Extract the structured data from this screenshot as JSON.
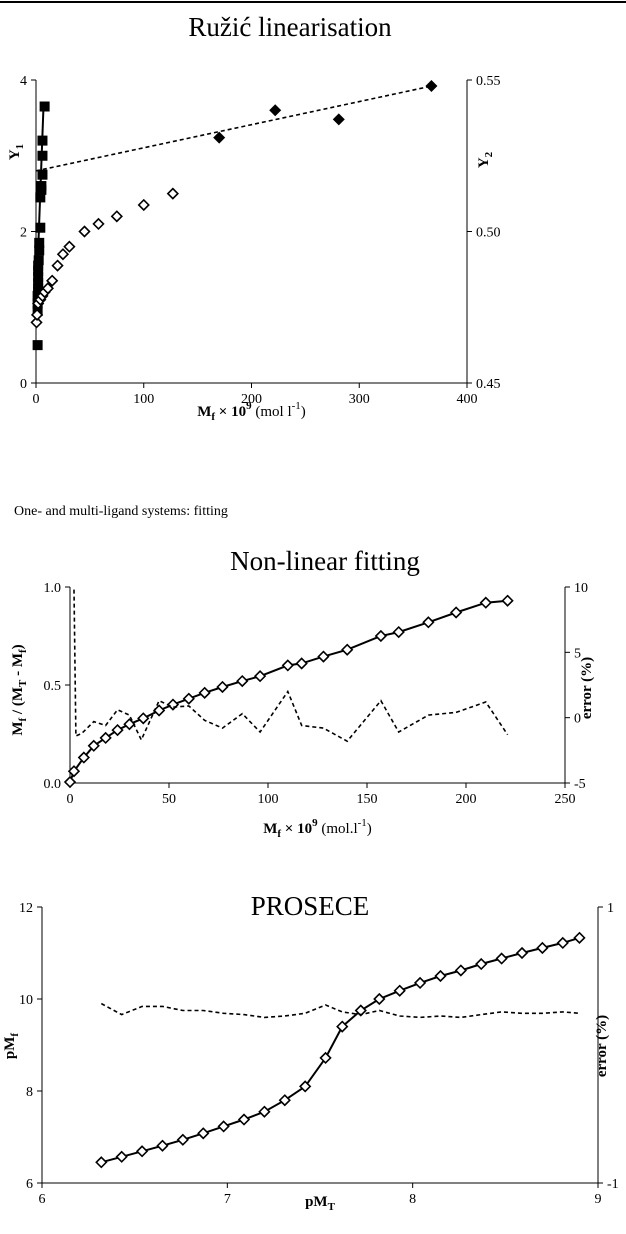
{
  "caption": "One- and multi-ligand systems: fitting",
  "chart_data": [
    {
      "type": "scatter",
      "title": "Ružić linearisation",
      "xlabel": {
        "main": "M",
        "sub": "f",
        "times": " × 10",
        "sup": "9",
        "unit": " (mol l",
        "unit_sup": "-1",
        "unit_end": ")"
      },
      "ylabel_left": {
        "main": "Y",
        "sub": "1"
      },
      "ylabel_right": {
        "main": "Y",
        "sub": "2"
      },
      "xlim": [
        0,
        400
      ],
      "ylim_left": [
        0,
        4
      ],
      "ylim_right": [
        0.45,
        0.55
      ],
      "xticks": [
        0,
        100,
        200,
        300,
        400
      ],
      "yticks_left": [
        0,
        2,
        4
      ],
      "yticks_right": [
        0.45,
        0.5,
        0.55
      ],
      "grid": false,
      "series": [
        {
          "axis": "left",
          "marker": "square-filled",
          "line": "none",
          "points": [
            [
              1.5,
              0.5
            ],
            [
              1.5,
              0.95
            ],
            [
              1.5,
              1.05
            ],
            [
              1.5,
              1.15
            ],
            [
              2,
              1.2
            ],
            [
              2,
              1.25
            ],
            [
              2,
              1.32
            ],
            [
              2,
              1.4
            ],
            [
              2,
              1.48
            ],
            [
              2,
              1.55
            ],
            [
              2.5,
              1.62
            ],
            [
              3,
              1.75
            ],
            [
              3,
              1.85
            ],
            [
              4,
              2.05
            ],
            [
              4,
              2.45
            ],
            [
              5,
              2.55
            ],
            [
              5,
              2.6
            ],
            [
              6,
              2.75
            ],
            [
              6,
              3.0
            ],
            [
              6,
              3.2
            ],
            [
              8,
              3.65
            ]
          ]
        },
        {
          "axis": "left",
          "marker": "none",
          "line": "solid",
          "points": [
            [
              0,
              1.0
            ],
            [
              7,
              3.65
            ]
          ]
        },
        {
          "axis": "left",
          "marker": "diamond-open",
          "line": "none",
          "points": [
            [
              0.5,
              0.8
            ],
            [
              1,
              0.9
            ],
            [
              2,
              1.05
            ],
            [
              4,
              1.1
            ],
            [
              6,
              1.15
            ],
            [
              8,
              1.2
            ],
            [
              11,
              1.25
            ],
            [
              15,
              1.35
            ],
            [
              20,
              1.55
            ],
            [
              25,
              1.7
            ],
            [
              31,
              1.8
            ],
            [
              45,
              2.0
            ],
            [
              58,
              2.1
            ],
            [
              75,
              2.2
            ],
            [
              100,
              2.35
            ],
            [
              127,
              2.5
            ]
          ]
        },
        {
          "axis": "right",
          "marker": "diamond-filled",
          "line": "none",
          "points": [
            [
              170,
              0.531
            ],
            [
              222,
              0.54
            ],
            [
              281,
              0.537
            ],
            [
              367,
              0.548
            ]
          ]
        },
        {
          "axis": "right",
          "marker": "none",
          "line": "dashed",
          "points": [
            [
              0,
              0.52
            ],
            [
              367,
              0.548
            ]
          ]
        }
      ]
    },
    {
      "type": "line",
      "title": "Non-linear fitting",
      "xlabel": {
        "main": "M",
        "sub": "f",
        "times": " × 10",
        "sup": "9",
        "unit": " (mol.l",
        "unit_sup": "-1",
        "unit_end": ")"
      },
      "ylabel_left": {
        "a": "M",
        "a_sub": "f",
        "b": " / (M",
        "b_sub": "T",
        "c": " - M",
        "c_sub": "f",
        "d": ")"
      },
      "ylabel_right": "error (%)",
      "xlim": [
        0,
        250
      ],
      "ylim_left": [
        0,
        1
      ],
      "ylim_right": [
        -5,
        10
      ],
      "xticks": [
        0,
        50,
        100,
        150,
        200,
        250
      ],
      "yticks_left": [
        0.0,
        0.5,
        1.0
      ],
      "yticks_left_labels": [
        "0.0",
        "0.5",
        "1.0"
      ],
      "yticks_right": [
        -5,
        0,
        5,
        10
      ],
      "grid": false,
      "series": [
        {
          "axis": "left",
          "marker": "diamond-open",
          "line": "solid",
          "points": [
            [
              0,
              0.005
            ],
            [
              2,
              0.06
            ],
            [
              7,
              0.13
            ],
            [
              12,
              0.19
            ],
            [
              18,
              0.23
            ],
            [
              24,
              0.27
            ],
            [
              30,
              0.3
            ],
            [
              37,
              0.33
            ],
            [
              45,
              0.37
            ],
            [
              52,
              0.4
            ],
            [
              60,
              0.43
            ],
            [
              68,
              0.46
            ],
            [
              77,
              0.49
            ],
            [
              87,
              0.52
            ],
            [
              96,
              0.545
            ],
            [
              110,
              0.6
            ],
            [
              117,
              0.61
            ],
            [
              128,
              0.645
            ],
            [
              140,
              0.68
            ],
            [
              157,
              0.75
            ],
            [
              166,
              0.77
            ],
            [
              181,
              0.82
            ],
            [
              195,
              0.87
            ],
            [
              210,
              0.92
            ],
            [
              221,
              0.93
            ]
          ]
        },
        {
          "axis": "right",
          "marker": "none",
          "line": "dashed",
          "points": [
            [
              2,
              9.8
            ],
            [
              3,
              -1.4
            ],
            [
              6,
              -1.2
            ],
            [
              12,
              -0.3
            ],
            [
              18,
              -0.6
            ],
            [
              24,
              0.6
            ],
            [
              30,
              0.2
            ],
            [
              36,
              -1.7
            ],
            [
              45,
              1.3
            ],
            [
              52,
              0.8
            ],
            [
              60,
              0.9
            ],
            [
              68,
              -0.2
            ],
            [
              77,
              -0.8
            ],
            [
              87,
              0.3
            ],
            [
              96,
              -1.1
            ],
            [
              110,
              2.0
            ],
            [
              117,
              -0.6
            ],
            [
              128,
              -0.8
            ],
            [
              140,
              -1.8
            ],
            [
              157,
              1.3
            ],
            [
              166,
              -1.1
            ],
            [
              181,
              0.2
            ],
            [
              195,
              0.4
            ],
            [
              210,
              1.2
            ],
            [
              221,
              -1.3
            ]
          ]
        }
      ]
    },
    {
      "type": "line",
      "title": "PROSECE",
      "xlabel": {
        "main": "pM",
        "sub": "T"
      },
      "ylabel_left": {
        "main": "pM",
        "sub": "f"
      },
      "ylabel_right": "error (%)",
      "xlim": [
        6,
        9
      ],
      "ylim_left": [
        6,
        12
      ],
      "ylim_right": [
        -1,
        1
      ],
      "xticks": [
        6,
        7,
        8,
        9
      ],
      "yticks_left": [
        6,
        8,
        10,
        12
      ],
      "yticks_right": [
        -1,
        1
      ],
      "grid": false,
      "series": [
        {
          "axis": "left",
          "marker": "diamond-open",
          "line": "solid",
          "points": [
            [
              6.32,
              6.45
            ],
            [
              6.43,
              6.57
            ],
            [
              6.54,
              6.69
            ],
            [
              6.65,
              6.81
            ],
            [
              6.76,
              6.94
            ],
            [
              6.87,
              7.08
            ],
            [
              6.98,
              7.23
            ],
            [
              7.09,
              7.38
            ],
            [
              7.2,
              7.55
            ],
            [
              7.31,
              7.8
            ],
            [
              7.42,
              8.1
            ],
            [
              7.53,
              8.72
            ],
            [
              7.62,
              9.4
            ],
            [
              7.72,
              9.75
            ],
            [
              7.82,
              10.0
            ],
            [
              7.93,
              10.18
            ],
            [
              8.04,
              10.35
            ],
            [
              8.15,
              10.5
            ],
            [
              8.26,
              10.62
            ],
            [
              8.37,
              10.76
            ],
            [
              8.48,
              10.88
            ],
            [
              8.59,
              11.0
            ],
            [
              8.7,
              11.11
            ],
            [
              8.81,
              11.22
            ],
            [
              8.9,
              11.33
            ]
          ]
        },
        {
          "axis": "right",
          "marker": "none",
          "line": "dashed",
          "points": [
            [
              6.32,
              0.3
            ],
            [
              6.43,
              0.22
            ],
            [
              6.54,
              0.28
            ],
            [
              6.65,
              0.28
            ],
            [
              6.76,
              0.25
            ],
            [
              6.87,
              0.25
            ],
            [
              6.98,
              0.23
            ],
            [
              7.09,
              0.22
            ],
            [
              7.2,
              0.2
            ],
            [
              7.31,
              0.21
            ],
            [
              7.42,
              0.23
            ],
            [
              7.53,
              0.29
            ],
            [
              7.62,
              0.24
            ],
            [
              7.72,
              0.22
            ],
            [
              7.82,
              0.25
            ],
            [
              7.93,
              0.21
            ],
            [
              8.04,
              0.2
            ],
            [
              8.15,
              0.21
            ],
            [
              8.26,
              0.2
            ],
            [
              8.37,
              0.22
            ],
            [
              8.48,
              0.24
            ],
            [
              8.59,
              0.23
            ],
            [
              8.7,
              0.23
            ],
            [
              8.81,
              0.24
            ],
            [
              8.9,
              0.23
            ]
          ]
        }
      ]
    }
  ]
}
